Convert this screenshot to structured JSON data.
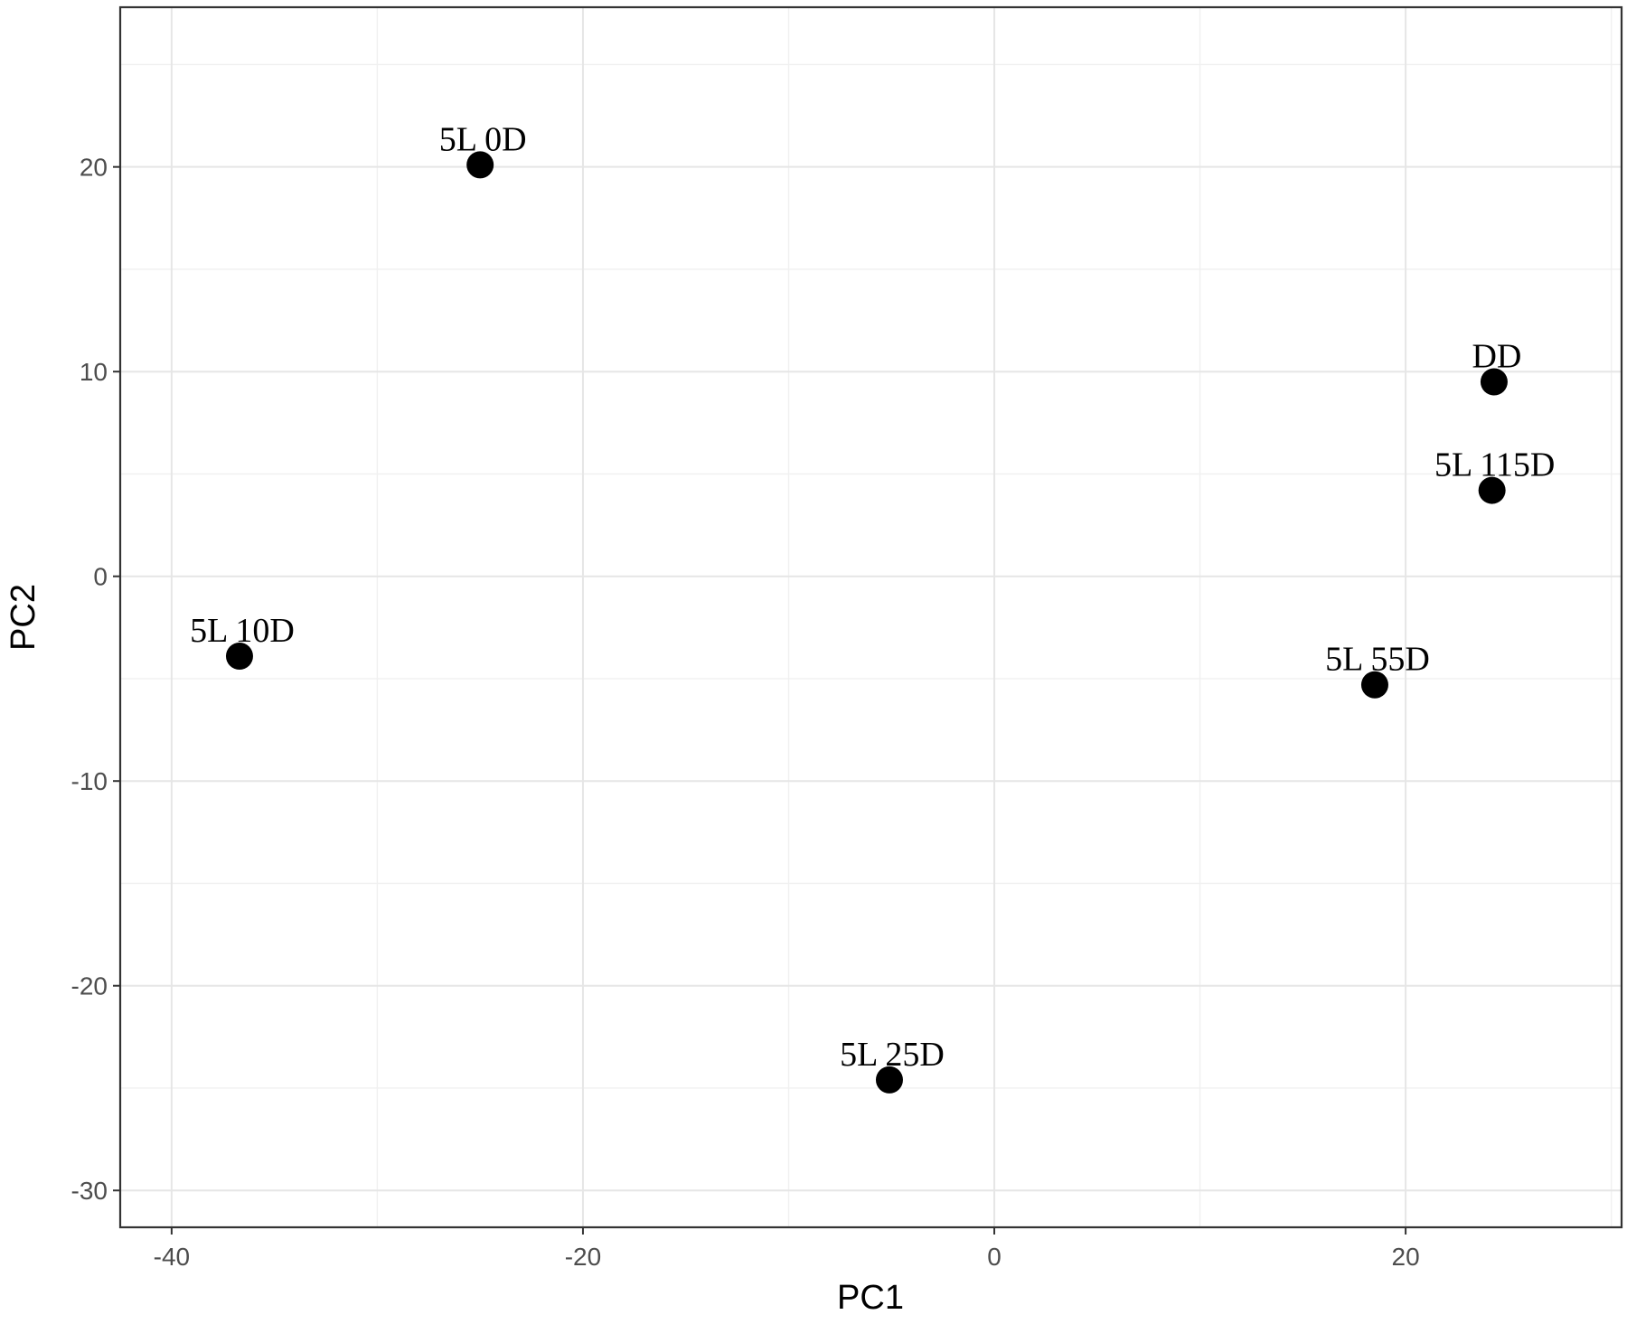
{
  "chart_data": {
    "type": "scatter",
    "title": "",
    "xlabel": "PC1",
    "ylabel": "PC2",
    "xlim": [
      -42.5,
      30.5
    ],
    "ylim": [
      -31.8,
      27.8
    ],
    "x_ticks": [
      -40,
      -20,
      0,
      20
    ],
    "y_ticks": [
      -30,
      -20,
      -10,
      0,
      10,
      20
    ],
    "x_tick_labels": [
      "-40",
      "-20",
      "0",
      "20"
    ],
    "y_tick_labels": [
      "-30",
      "-20",
      "-10",
      "0",
      "10",
      "20"
    ],
    "grid": true,
    "points": [
      {
        "label": "5L 0D",
        "x": -25.0,
        "y": 20.1
      },
      {
        "label": "DD",
        "x": 24.3,
        "y": 9.5
      },
      {
        "label": "5L 115D",
        "x": 24.2,
        "y": 4.2
      },
      {
        "label": "5L 10D",
        "x": -36.7,
        "y": -3.9
      },
      {
        "label": "5L 55D",
        "x": 18.5,
        "y": -5.3
      },
      {
        "label": "5L 25D",
        "x": -5.1,
        "y": -24.6
      }
    ]
  }
}
